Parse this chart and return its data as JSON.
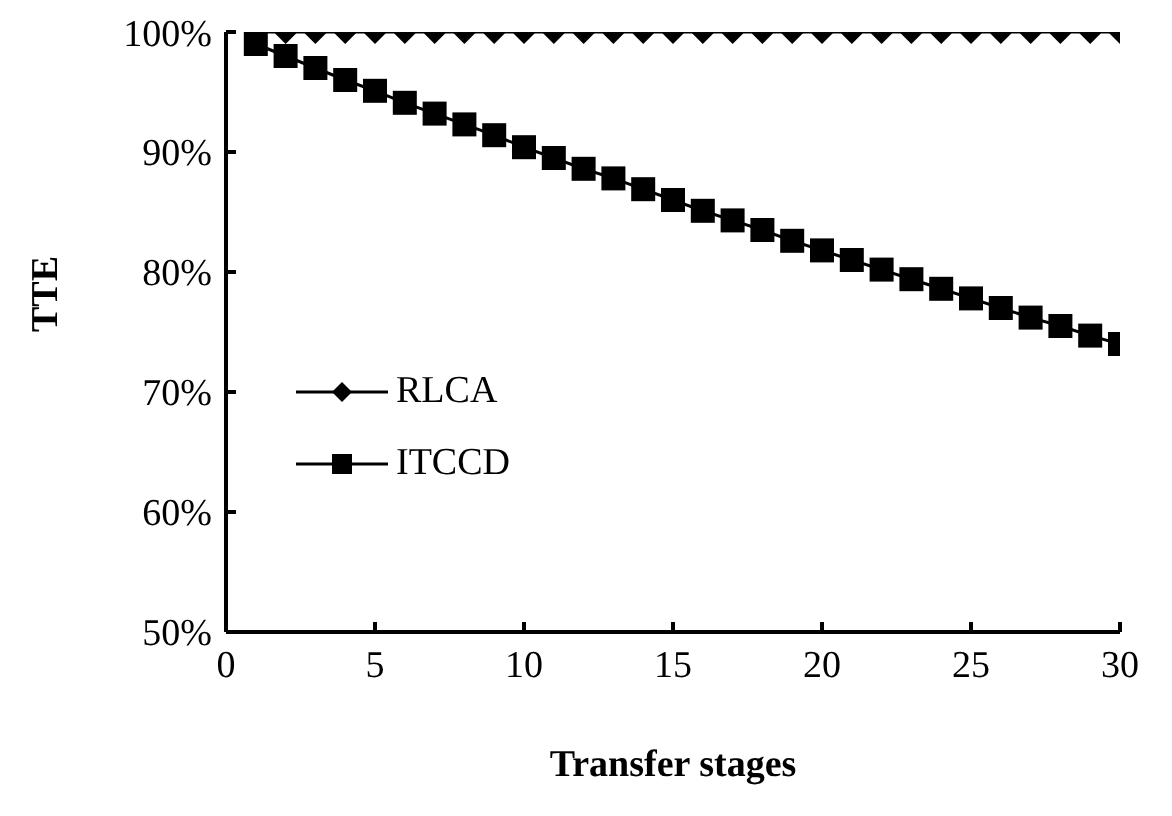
{
  "chart_data": {
    "type": "line",
    "xlabel": "Transfer stages",
    "ylabel": "TTE",
    "x": [
      1,
      2,
      3,
      4,
      5,
      6,
      7,
      8,
      9,
      10,
      11,
      12,
      13,
      14,
      15,
      16,
      17,
      18,
      19,
      20,
      21,
      22,
      23,
      24,
      25,
      26,
      27,
      28,
      29,
      30
    ],
    "series": [
      {
        "name": "RLCA",
        "color": "#000000",
        "marker": "diamond",
        "values": [
          100,
          100,
          100,
          100,
          100,
          100,
          100,
          100,
          100,
          100,
          100,
          100,
          100,
          100,
          100,
          100,
          100,
          100,
          100,
          100,
          100,
          100,
          100,
          100,
          100,
          100,
          100,
          100,
          100,
          100
        ]
      },
      {
        "name": "ITCCD",
        "color": "#000000",
        "marker": "square",
        "values": [
          99,
          98,
          97,
          96,
          95.1,
          94.1,
          93.2,
          92.3,
          91.4,
          90.4,
          89.5,
          88.6,
          87.8,
          86.9,
          86,
          85.1,
          84.3,
          83.5,
          82.6,
          81.8,
          81,
          80.2,
          79.4,
          78.6,
          77.8,
          77,
          76.2,
          75.5,
          74.7,
          74
        ]
      }
    ],
    "xlim": [
      0,
      30
    ],
    "xticks": [
      0,
      5,
      10,
      15,
      20,
      25,
      30
    ],
    "ylim": [
      50,
      100
    ],
    "yticks": [
      {
        "value": 50,
        "label": "50%"
      },
      {
        "value": 60,
        "label": "60%"
      },
      {
        "value": 70,
        "label": "70%"
      },
      {
        "value": 80,
        "label": "80%"
      },
      {
        "value": 90,
        "label": "90%"
      },
      {
        "value": 100,
        "label": "100%"
      }
    ],
    "grid": false,
    "legend": "left",
    "line_style": "solid"
  }
}
